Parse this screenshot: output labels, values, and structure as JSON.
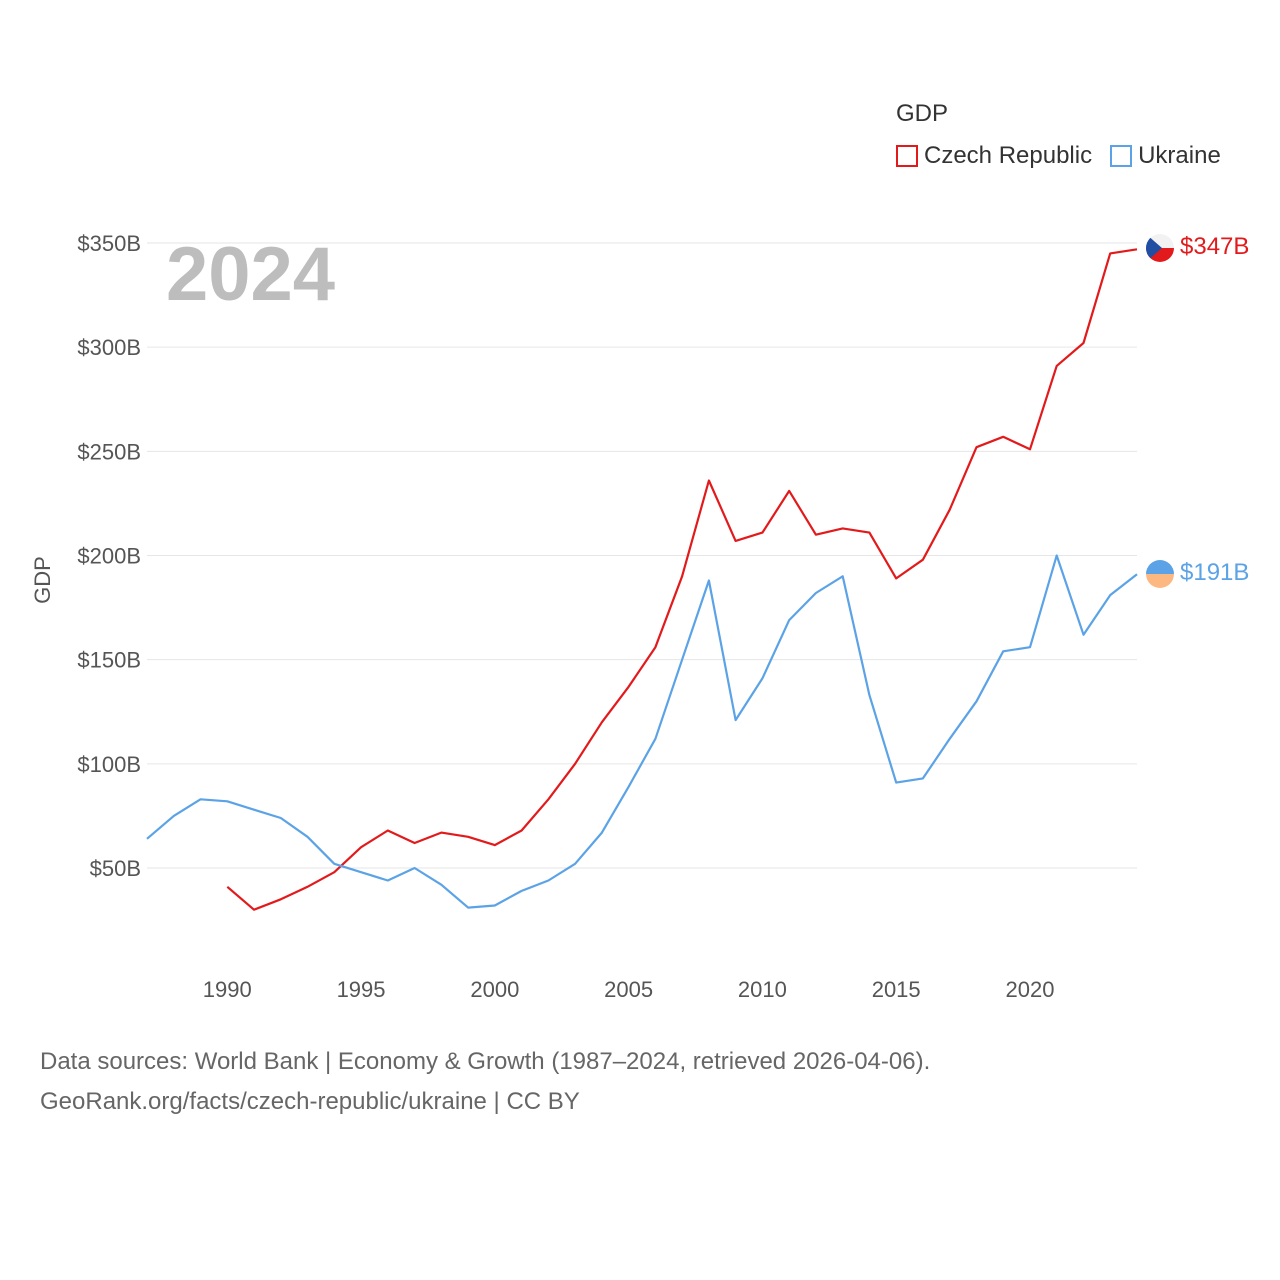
{
  "legend": {
    "title": "GDP",
    "items": [
      {
        "label": "Czech Republic",
        "color": "#e31a1c"
      },
      {
        "label": "Ukraine",
        "color": "#5ba3e6"
      }
    ]
  },
  "year_label": "2024",
  "end_labels": {
    "czech": "$347B",
    "ukraine": "$191B"
  },
  "footer": {
    "line1": "Data sources: World Bank | Economy & Growth (1987–2024, retrieved 2026-04-06).",
    "line2": "GeoRank.org/facts/czech-republic/ukraine | CC BY"
  },
  "chart_data": {
    "type": "line",
    "title": "",
    "xlabel": "",
    "ylabel": "GDP",
    "xlim": [
      1987,
      2024
    ],
    "ylim": [
      15,
      350
    ],
    "x_ticks": [
      1990,
      1995,
      2000,
      2005,
      2010,
      2015,
      2020
    ],
    "y_ticks": [
      50,
      100,
      150,
      200,
      250,
      300,
      350
    ],
    "y_tick_labels": [
      "$50B",
      "$100B",
      "$150B",
      "$200B",
      "$250B",
      "$300B",
      "$350B"
    ],
    "grid": true,
    "series": [
      {
        "name": "Czech Republic",
        "color": "#e31a1c",
        "x": [
          1990,
          1991,
          1992,
          1993,
          1994,
          1995,
          1996,
          1997,
          1998,
          1999,
          2000,
          2001,
          2002,
          2003,
          2004,
          2005,
          2006,
          2007,
          2008,
          2009,
          2010,
          2011,
          2012,
          2013,
          2014,
          2015,
          2016,
          2017,
          2018,
          2019,
          2020,
          2021,
          2022,
          2023,
          2024
        ],
        "values": [
          41,
          30,
          35,
          41,
          48,
          60,
          68,
          62,
          67,
          65,
          61,
          68,
          83,
          100,
          120,
          137,
          156,
          190,
          236,
          207,
          211,
          231,
          210,
          213,
          211,
          189,
          198,
          222,
          252,
          257,
          251,
          291,
          302,
          345,
          347
        ]
      },
      {
        "name": "Ukraine",
        "color": "#5ba3e6",
        "x": [
          1987,
          1988,
          1989,
          1990,
          1991,
          1992,
          1993,
          1994,
          1995,
          1996,
          1997,
          1998,
          1999,
          2000,
          2001,
          2002,
          2003,
          2004,
          2005,
          2006,
          2007,
          2008,
          2009,
          2010,
          2011,
          2012,
          2013,
          2014,
          2015,
          2016,
          2017,
          2018,
          2019,
          2020,
          2021,
          2022,
          2023,
          2024
        ],
        "values": [
          64,
          75,
          83,
          82,
          78,
          74,
          65,
          52,
          48,
          44,
          50,
          42,
          31,
          32,
          39,
          44,
          52,
          67,
          89,
          112,
          150,
          188,
          121,
          141,
          169,
          182,
          190,
          133,
          91,
          93,
          112,
          130,
          154,
          156,
          200,
          162,
          181,
          191
        ]
      }
    ]
  }
}
